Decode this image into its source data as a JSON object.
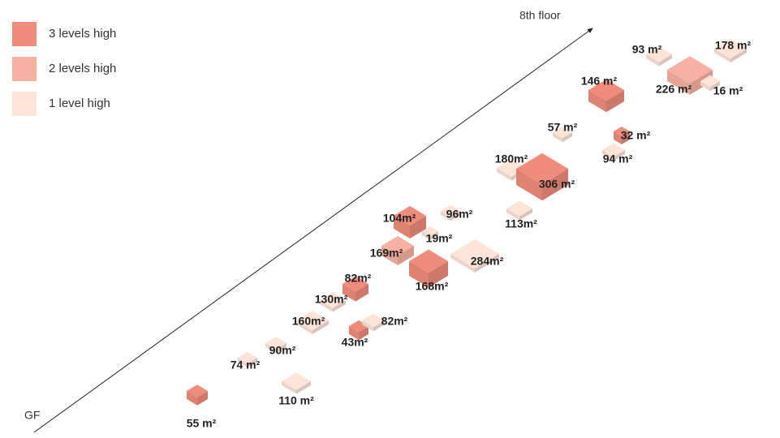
{
  "legend": [
    {
      "label": "3 levels high",
      "color": "#ef8c7d"
    },
    {
      "label": "2 levels high",
      "color": "#f6b1a4"
    },
    {
      "label": "1 level high",
      "color": "#fce4d9"
    }
  ],
  "axis": {
    "start": "GF",
    "end": "8th floor"
  },
  "blocks": [
    {
      "label": "55 m²",
      "color": "#ef8c7d"
    },
    {
      "label": "110 m²",
      "color": "#fce4d9"
    },
    {
      "label": "74 m²",
      "color": "#fce4d9"
    },
    {
      "label": "90m²",
      "color": "#fce4d9"
    },
    {
      "label": "43m²",
      "color": "#ef8c7d"
    },
    {
      "label": "82m²",
      "color": "#fce4d9"
    },
    {
      "label": "160m²",
      "color": "#fce4d9"
    },
    {
      "label": "130m²",
      "color": "#fce4d9"
    },
    {
      "label": "82m²",
      "color": "#ef8c7d"
    },
    {
      "label": "168m²",
      "color": "#ef8c7d"
    },
    {
      "label": "169m²",
      "color": "#f6b1a4"
    },
    {
      "label": "104m²",
      "color": "#ef8c7d"
    },
    {
      "label": "19m²",
      "color": "#fce4d9"
    },
    {
      "label": "96m²",
      "color": "#fce4d9"
    },
    {
      "label": "284m²",
      "color": "#fce4d9"
    },
    {
      "label": "180m²",
      "color": "#fce4d9"
    },
    {
      "label": "306 m²",
      "color": "#ef8c7d"
    },
    {
      "label": "113m²",
      "color": "#fce4d9"
    },
    {
      "label": "57 m²",
      "color": "#fce4d9"
    },
    {
      "label": "94 m²",
      "color": "#fce4d9"
    },
    {
      "label": "32 m²",
      "color": "#ef8c7d"
    },
    {
      "label": "146 m²",
      "color": "#ef8c7d"
    },
    {
      "label": "226 m²",
      "color": "#f6b1a4"
    },
    {
      "label": "16 m²",
      "color": "#fce4d9"
    },
    {
      "label": "93 m²",
      "color": "#fce4d9"
    },
    {
      "label": "178 m²",
      "color": "#fce4d9"
    }
  ]
}
